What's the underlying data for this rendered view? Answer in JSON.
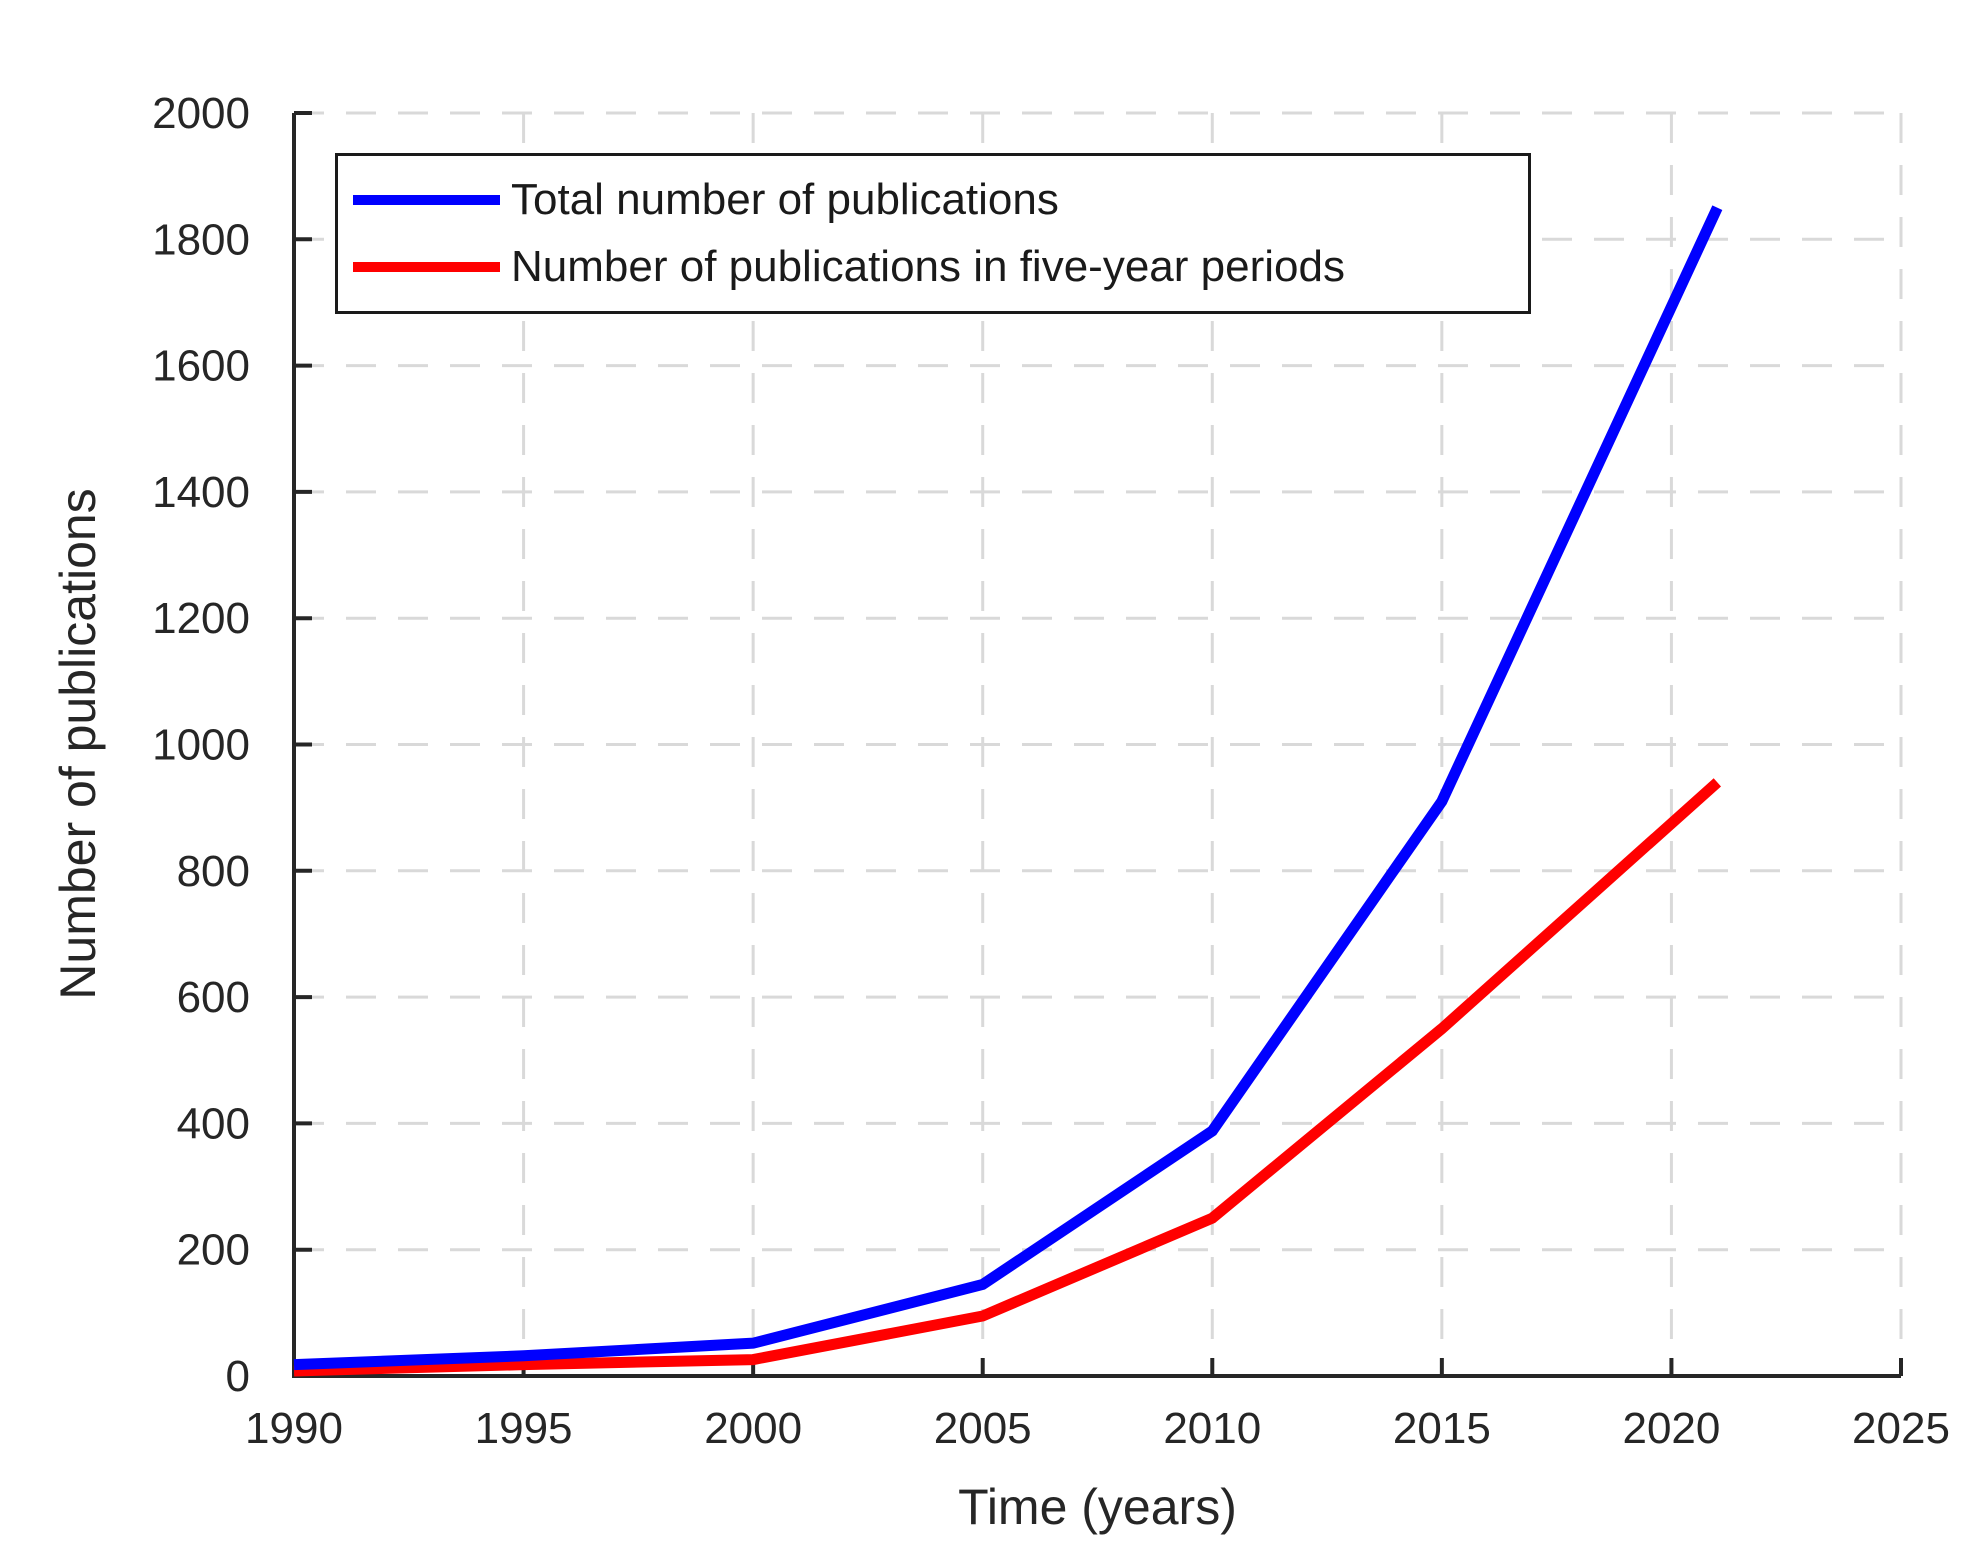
{
  "chart_data": {
    "type": "line",
    "title": "",
    "xlabel": "Time (years)",
    "ylabel": "Number of publications",
    "xlim": [
      1990,
      2025
    ],
    "ylim": [
      0,
      2000
    ],
    "x_ticks": [
      1990,
      1995,
      2000,
      2005,
      2010,
      2015,
      2020,
      2025
    ],
    "y_ticks": [
      0,
      200,
      400,
      600,
      800,
      1000,
      1200,
      1400,
      1600,
      1800,
      2000
    ],
    "grid": "dashed",
    "legend_position": "top-left-inside",
    "series": [
      {
        "name": "Total number of publications",
        "color": "#0000ff",
        "x": [
          1990,
          1995,
          2000,
          2005,
          2010,
          2015,
          2021
        ],
        "y": [
          18,
          32,
          52,
          145,
          388,
          910,
          1850
        ]
      },
      {
        "name": "Number of publications in five-year periods",
        "color": "#ff0000",
        "x": [
          1990,
          1995,
          2000,
          2005,
          2010,
          2015,
          2021
        ],
        "y": [
          8,
          18,
          26,
          95,
          250,
          550,
          940
        ]
      }
    ]
  },
  "colors": {
    "axis": "#262626",
    "gridline": "#d9d9d9",
    "text": "#262626",
    "background": "#ffffff",
    "series_total": "#0000ff",
    "series_five_year": "#ff0000"
  }
}
